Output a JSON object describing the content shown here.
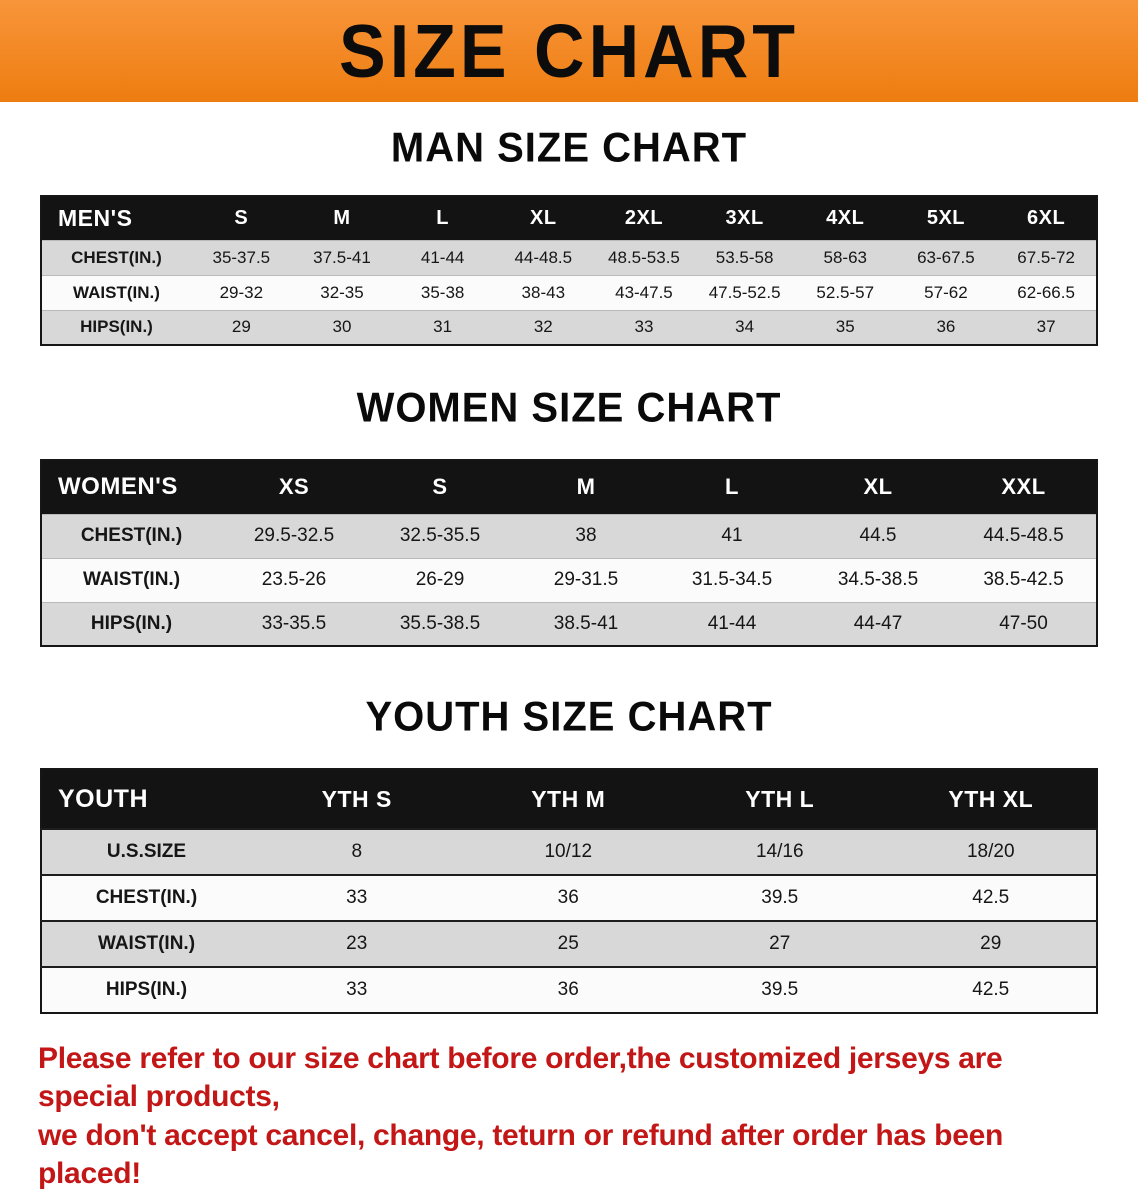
{
  "banner": {
    "title": "SIZE CHART",
    "bg_color": "#f0831c"
  },
  "sections": [
    {
      "id": "men",
      "heading": "MAN SIZE CHART",
      "table": {
        "header": [
          "MEN'S",
          "S",
          "M",
          "L",
          "XL",
          "2XL",
          "3XL",
          "4XL",
          "5XL",
          "6XL"
        ],
        "rows": [
          [
            "CHEST(IN.)",
            "35-37.5",
            "37.5-41",
            "41-44",
            "44-48.5",
            "48.5-53.5",
            "53.5-58",
            "58-63",
            "63-67.5",
            "67.5-72"
          ],
          [
            "WAIST(IN.)",
            "29-32",
            "32-35",
            "35-38",
            "38-43",
            "43-47.5",
            "47.5-52.5",
            "52.5-57",
            "57-62",
            "62-66.5"
          ],
          [
            "HIPS(IN.)",
            "29",
            "30",
            "31",
            "32",
            "33",
            "34",
            "35",
            "36",
            "37"
          ]
        ]
      }
    },
    {
      "id": "women",
      "heading": "WOMEN SIZE CHART",
      "table": {
        "header": [
          "WOMEN'S",
          "XS",
          "S",
          "M",
          "L",
          "XL",
          "XXL"
        ],
        "rows": [
          [
            "CHEST(IN.)",
            "29.5-32.5",
            "32.5-35.5",
            "38",
            "41",
            "44.5",
            "44.5-48.5"
          ],
          [
            "WAIST(IN.)",
            "23.5-26",
            "26-29",
            "29-31.5",
            "31.5-34.5",
            "34.5-38.5",
            "38.5-42.5"
          ],
          [
            "HIPS(IN.)",
            "33-35.5",
            "35.5-38.5",
            "38.5-41",
            "41-44",
            "44-47",
            "47-50"
          ]
        ]
      }
    },
    {
      "id": "youth",
      "heading": "YOUTH SIZE CHART",
      "table": {
        "header": [
          "YOUTH",
          "YTH S",
          "YTH M",
          "YTH L",
          "YTH XL"
        ],
        "rows": [
          [
            "U.S.SIZE",
            "8",
            "10/12",
            "14/16",
            "18/20"
          ],
          [
            "CHEST(IN.)",
            "33",
            "36",
            "39.5",
            "42.5"
          ],
          [
            "WAIST(IN.)",
            "23",
            "25",
            "27",
            "29"
          ],
          [
            "HIPS(IN.)",
            "33",
            "36",
            "39.5",
            "42.5"
          ]
        ]
      }
    }
  ],
  "disclaimer": {
    "lines": [
      "Please refer to our size chart before order,the customized jerseys are special products,",
      "we don't accept cancel, change, teturn or refund after order has been placed!"
    ],
    "color": "#c31616"
  }
}
